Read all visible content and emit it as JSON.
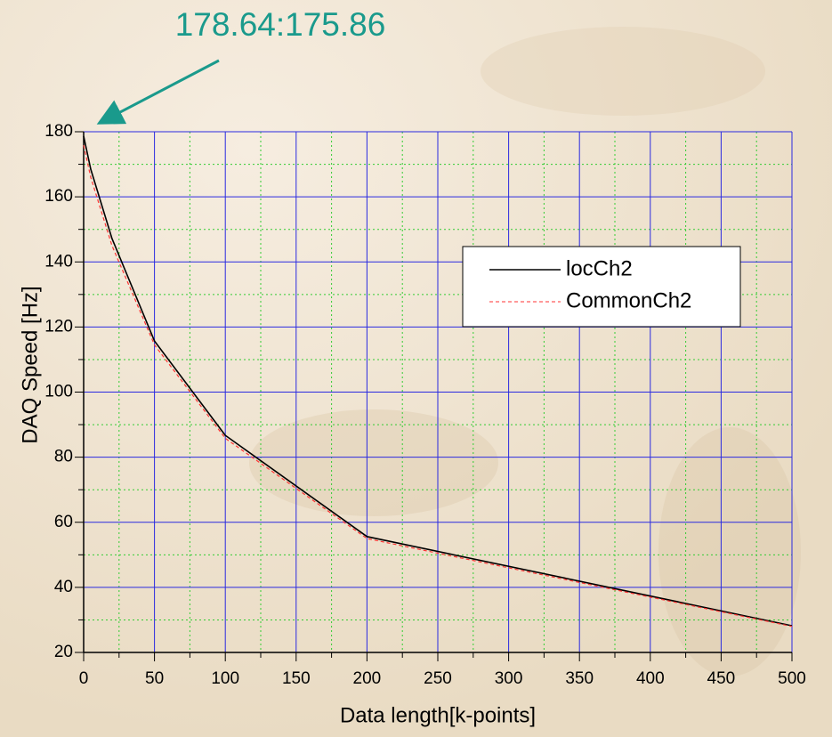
{
  "chart_data": {
    "type": "line",
    "annotation": "178.64:175.86",
    "xlabel": "Data length[k-points]",
    "ylabel": "DAQ Speed [Hz]",
    "x": [
      0,
      5,
      20,
      50,
      100,
      200,
      500
    ],
    "series": [
      {
        "name": "locCh2",
        "color": "#000000",
        "dash": false,
        "values": [
          178.64,
          168.5,
          147.2,
          115.7,
          86.7,
          55.6,
          28.2
        ]
      },
      {
        "name": "CommonCh2",
        "color": "#ff3333",
        "dash": true,
        "values": [
          175.86,
          166.0,
          145.0,
          114.5,
          85.8,
          55.0,
          28.0
        ]
      }
    ],
    "xlim": [
      0,
      500
    ],
    "ylim": [
      20,
      180
    ],
    "xticks": [
      0,
      50,
      100,
      150,
      200,
      250,
      300,
      350,
      400,
      450,
      500
    ],
    "yticks": [
      20,
      40,
      60,
      80,
      100,
      120,
      140,
      160,
      180
    ],
    "minor_xticks": [
      25,
      75,
      125,
      175,
      225,
      275,
      325,
      375,
      425,
      475
    ],
    "minor_yticks": [
      30,
      50,
      70,
      90,
      110,
      130,
      150,
      170
    ],
    "grid": true,
    "legend": "upper right"
  }
}
